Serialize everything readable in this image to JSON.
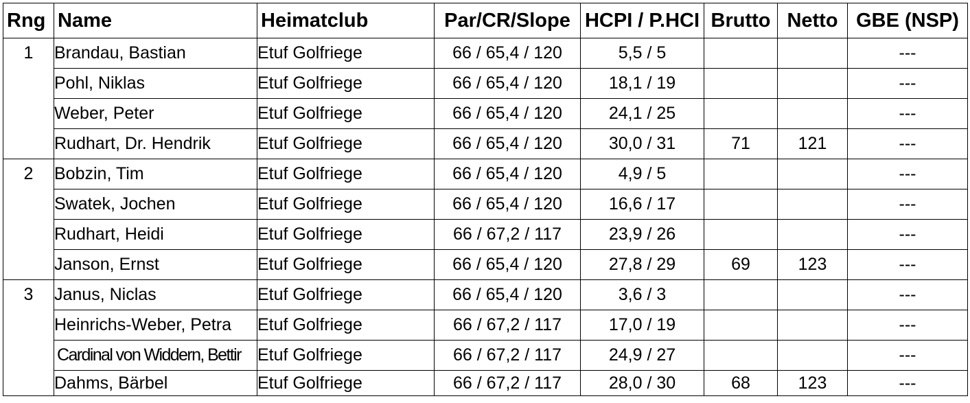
{
  "headers": {
    "rng": "Rng",
    "name": "Name",
    "club": "Heimatclub",
    "par": "Par/CR/Slope",
    "hcpi": "HCPI / P.HCI",
    "brutto": "Brutto",
    "netto": "Netto",
    "gbe": "GBE (NSP)"
  },
  "rows": [
    {
      "rng": "1",
      "name": "Brandau, Bastian",
      "club": "Etuf Golfriege",
      "par": "66 / 65,4 / 120",
      "hcpi": "5,5 / 5",
      "brutto": "",
      "netto": "",
      "gbe": "---"
    },
    {
      "rng": "",
      "name": "Pohl, Niklas",
      "club": "Etuf Golfriege",
      "par": "66 / 65,4 / 120",
      "hcpi": "18,1 / 19",
      "brutto": "",
      "netto": "",
      "gbe": "---"
    },
    {
      "rng": "",
      "name": "Weber, Peter",
      "club": "Etuf Golfriege",
      "par": "66 / 65,4 / 120",
      "hcpi": "24,1 / 25",
      "brutto": "",
      "netto": "",
      "gbe": "---"
    },
    {
      "rng": "",
      "name": "Rudhart, Dr. Hendrik",
      "club": "Etuf Golfriege",
      "par": "66 / 65,4 / 120",
      "hcpi": "30,0 / 31",
      "brutto": "71",
      "netto": "121",
      "gbe": "---"
    },
    {
      "rng": "2",
      "name": "Bobzin, Tim",
      "club": "Etuf Golfriege",
      "par": "66 / 65,4 / 120",
      "hcpi": "4,9 / 5",
      "brutto": "",
      "netto": "",
      "gbe": "---"
    },
    {
      "rng": "",
      "name": "Swatek, Jochen",
      "club": "Etuf Golfriege",
      "par": "66 / 65,4 / 120",
      "hcpi": "16,6 / 17",
      "brutto": "",
      "netto": "",
      "gbe": "---"
    },
    {
      "rng": "",
      "name": "Rudhart, Heidi",
      "club": "Etuf Golfriege",
      "par": "66 / 67,2 / 117",
      "hcpi": "23,9 / 26",
      "brutto": "",
      "netto": "",
      "gbe": "---"
    },
    {
      "rng": "",
      "name": "Janson, Ernst",
      "club": "Etuf Golfriege",
      "par": "66 / 65,4 / 120",
      "hcpi": "27,8 / 29",
      "brutto": "69",
      "netto": "123",
      "gbe": "---"
    },
    {
      "rng": "3",
      "name": "Janus, Niclas",
      "club": "Etuf Golfriege",
      "par": "66 / 65,4 / 120",
      "hcpi": "3,6 / 3",
      "brutto": "",
      "netto": "",
      "gbe": "---"
    },
    {
      "rng": "",
      "name": "Heinrichs-Weber, Petra",
      "club": "Etuf Golfriege",
      "par": "66 / 67,2 / 117",
      "hcpi": "17,0 / 19",
      "brutto": "",
      "netto": "",
      "gbe": "---"
    },
    {
      "rng": "",
      "name": "Cardinal von Widdern, Bettir",
      "club": "Etuf Golfriege",
      "par": "66 / 67,2 / 117",
      "hcpi": "24,9 / 27",
      "brutto": "",
      "netto": "",
      "gbe": "---"
    },
    {
      "rng": "",
      "name": "Dahms, Bärbel",
      "club": "Etuf Golfriege",
      "par": "66 / 67,2 / 117",
      "hcpi": "28,0 / 30",
      "brutto": "68",
      "netto": "123",
      "gbe": "---"
    }
  ]
}
